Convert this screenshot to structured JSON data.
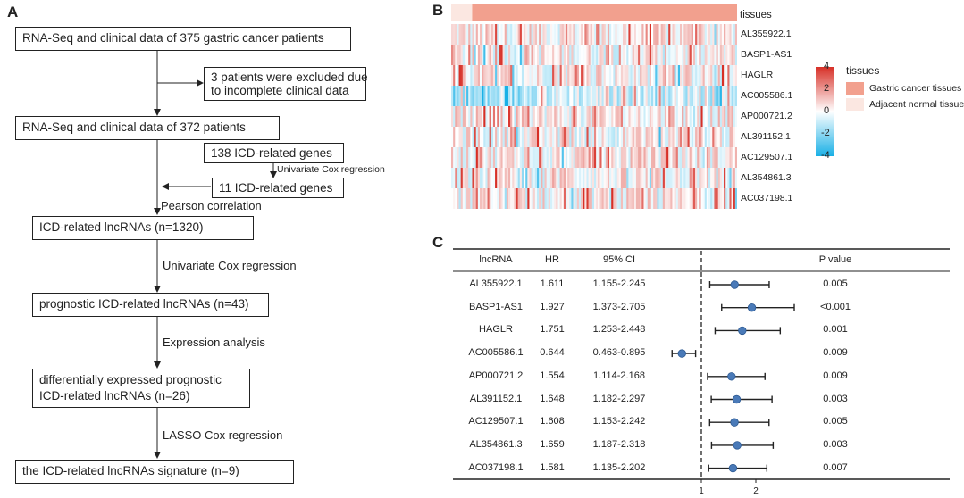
{
  "panels": {
    "a": "A",
    "b": "B",
    "c": "C"
  },
  "flowchart": {
    "box1": "RNA-Seq and clinical data of 375 gastric cancer patients",
    "exclude_line1": "3 patients were excluded due",
    "exclude_line2": "to incomplete clinical data",
    "box2": "RNA-Seq and clinical data of 372 patients",
    "genes138": "138 ICD-related genes",
    "univariate_small": "Univariate Cox regression",
    "genes11": "11 ICD-related genes",
    "pearson": "Pearson correlation",
    "box3": "ICD-related lncRNAs (n=1320)",
    "univariate": "Univariate Cox regression",
    "box4": "prognostic ICD-related lncRNAs (n=43)",
    "expression": "Expression analysis",
    "box5_line1": "differentially expressed prognostic",
    "box5_line2": "ICD-related lncRNAs (n=26)",
    "lasso": "LASSO Cox regression",
    "box6": "the ICD-related lncRNAs signature (n=9)"
  },
  "heatmap": {
    "annotation_label": "tissues",
    "genes": [
      "AL355922.1",
      "BASP1-AS1",
      "HAGLR",
      "AC005586.1",
      "AP000721.2",
      "AL391152.1",
      "AC129507.1",
      "AL354861.3",
      "AC037198.1"
    ],
    "colorbar_ticks": [
      "4",
      "2",
      "0",
      "-2",
      "-4"
    ],
    "legend_title": "tissues",
    "legend_items": [
      {
        "label": "Gastric cancer tissues",
        "color": "#f2a08e"
      },
      {
        "label": "Adjacent normal tissues",
        "color": "#fbe7e1"
      }
    ],
    "high_color": "#d73027",
    "mid_color": "#ffffff",
    "low_color": "#19b0e6"
  },
  "forest": {
    "headers": {
      "lncrna": "lncRNA",
      "hr": "HR",
      "ci": "95% CI",
      "p": "P value"
    },
    "rows": [
      {
        "name": "AL355922.1",
        "hr": "1.611",
        "ci": "1.155-2.245",
        "p": "0.005"
      },
      {
        "name": "BASP1-AS1",
        "hr": "1.927",
        "ci": "1.373-2.705",
        "p": "<0.001"
      },
      {
        "name": "HAGLR",
        "hr": "1.751",
        "ci": "1.253-2.448",
        "p": "0.001"
      },
      {
        "name": "AC005586.1",
        "hr": "0.644",
        "ci": "0.463-0.895",
        "p": "0.009"
      },
      {
        "name": "AP000721.2",
        "hr": "1.554",
        "ci": "1.114-2.168",
        "p": "0.009"
      },
      {
        "name": "AL391152.1",
        "hr": "1.648",
        "ci": "1.182-2.297",
        "p": "0.003"
      },
      {
        "name": "AC129507.1",
        "hr": "1.608",
        "ci": "1.153-2.242",
        "p": "0.005"
      },
      {
        "name": "AL354861.3",
        "hr": "1.659",
        "ci": "1.187-2.318",
        "p": "0.003"
      },
      {
        "name": "AC037198.1",
        "hr": "1.581",
        "ci": "1.135-2.202",
        "p": "0.007"
      }
    ],
    "axis_ticks": [
      "1",
      "2"
    ],
    "point_color": "#4a7ab8"
  },
  "chart_data": {
    "type": "scatter",
    "title": "",
    "xlabel": "",
    "ylabel": "",
    "categories": [
      "AL355922.1",
      "BASP1-AS1",
      "HAGLR",
      "AC005586.1",
      "AP000721.2",
      "AL391152.1",
      "AC129507.1",
      "AL354861.3",
      "AC037198.1"
    ],
    "hr": [
      1.611,
      1.927,
      1.751,
      0.644,
      1.554,
      1.648,
      1.608,
      1.659,
      1.581
    ],
    "ci_low": [
      1.155,
      1.373,
      1.253,
      0.463,
      1.114,
      1.182,
      1.153,
      1.187,
      1.135
    ],
    "ci_high": [
      2.245,
      2.705,
      2.448,
      0.895,
      2.168,
      2.297,
      2.242,
      2.318,
      2.202
    ],
    "reference_line": 1,
    "xlim": [
      0.1,
      3.1
    ],
    "xticks": [
      1,
      2
    ]
  }
}
